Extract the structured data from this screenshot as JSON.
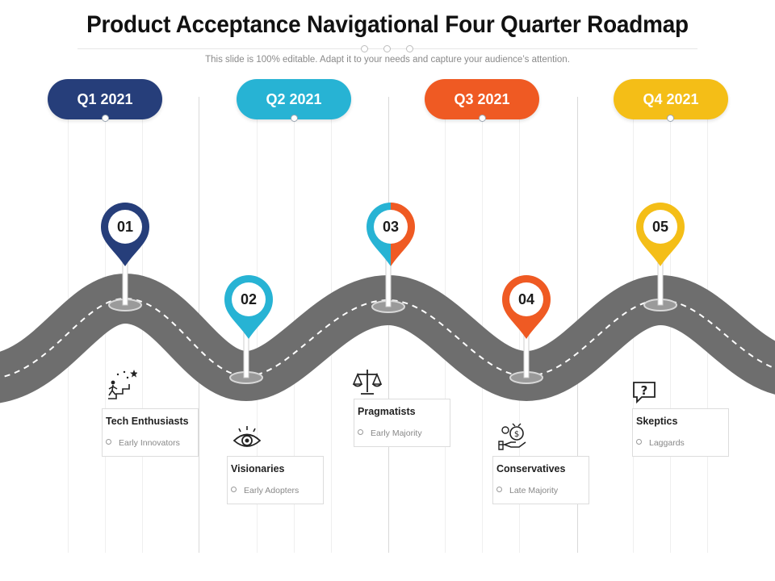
{
  "header": {
    "title": "Product Acceptance Navigational Four Quarter Roadmap",
    "subtitle": "This slide is 100% editable. Adapt it to your needs and capture your audience’s attention."
  },
  "quarters": [
    {
      "label": "Q1 2021",
      "color": "#263E7A"
    },
    {
      "label": "Q2 2021",
      "color": "#27B3D4"
    },
    {
      "label": "Q3 2021",
      "color": "#EF5A23"
    },
    {
      "label": "Q4 2021",
      "color": "#F4BE17"
    }
  ],
  "milestones": [
    {
      "number": "01",
      "title": "Tech Enthusiasts",
      "bullet": "Early Innovators",
      "icon": "stairs-stars-icon",
      "color": "#263E7A"
    },
    {
      "number": "02",
      "title": "Visionaries",
      "bullet": "Early Adopters",
      "icon": "eye-icon",
      "color": "#27B3D4"
    },
    {
      "number": "03",
      "title": "Pragmatists",
      "bullet": "Early Majority",
      "icon": "balance-scale-icon",
      "color": "#27B3D4",
      "color2": "#EF5A23"
    },
    {
      "number": "04",
      "title": "Conservatives",
      "bullet": "Late Majority",
      "icon": "money-hand-icon",
      "color": "#EF5A23"
    },
    {
      "number": "05",
      "title": "Skeptics",
      "bullet": "Laggards",
      "icon": "question-bubble-icon",
      "color": "#F4BE17"
    }
  ],
  "colors": {
    "road": "#707070",
    "road_edge": "#5e5e5e",
    "lane": "#ffffff",
    "grid": "#d9d9d9"
  }
}
